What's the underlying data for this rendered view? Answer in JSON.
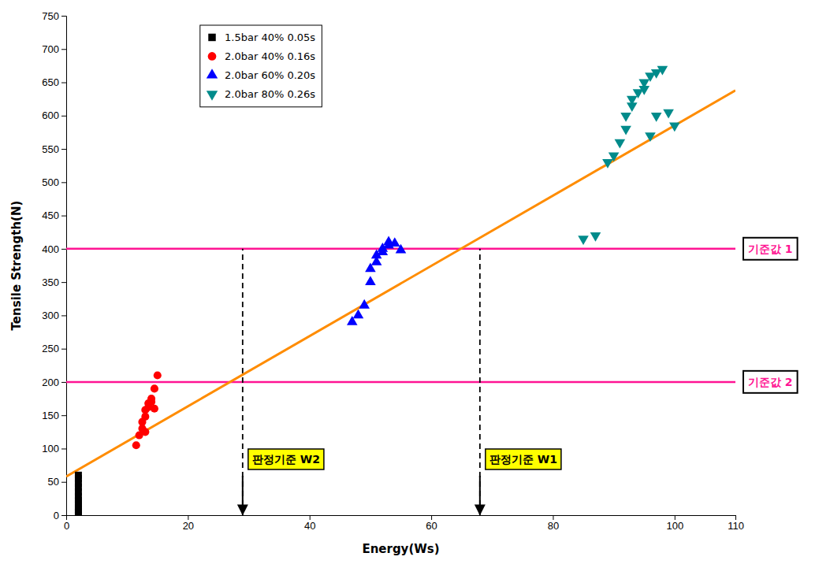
{
  "chart_data": {
    "type": "scatter",
    "x_label": "Energy(Ws)",
    "y_label": "Tensile Strength(N)",
    "xlim": [
      0,
      110
    ],
    "ylim": [
      0,
      750
    ],
    "xticks": [
      0,
      20,
      40,
      60,
      80,
      100,
      110
    ],
    "yticks": [
      0,
      50,
      100,
      150,
      200,
      250,
      300,
      350,
      400,
      450,
      500,
      550,
      600,
      650,
      700,
      750
    ],
    "grid": false,
    "legend": "upper left",
    "series": [
      {
        "name": "1.5bar 40% 0.05s",
        "type": "scatter",
        "color": "#000000",
        "marker": "square",
        "x": [
          2,
          2,
          2,
          2,
          2,
          2,
          2,
          2,
          2,
          2,
          2,
          2
        ],
        "values": [
          0,
          5,
          8,
          12,
          18,
          22,
          28,
          35,
          42,
          48,
          55,
          60
        ]
      },
      {
        "name": "2.0bar 40% 0.16s",
        "type": "scatter",
        "color": "#ff0000",
        "marker": "circle",
        "x": [
          11.5,
          12.0,
          12.5,
          12.5,
          13.0,
          13.0,
          13.5,
          13.5,
          14.0,
          14.0,
          14.5,
          15.0,
          14.5,
          13.0
        ],
        "values": [
          105,
          120,
          130,
          140,
          148,
          158,
          162,
          168,
          170,
          175,
          190,
          210,
          160,
          125
        ]
      },
      {
        "name": "2.0bar 60% 0.20s",
        "type": "scatter",
        "color": "#0000ff",
        "marker": "triangle-up",
        "x": [
          47,
          48,
          49,
          50,
          50,
          51,
          51,
          52,
          52,
          53,
          53,
          54,
          55
        ],
        "values": [
          290,
          300,
          315,
          350,
          370,
          380,
          390,
          395,
          400,
          405,
          410,
          408,
          398
        ]
      },
      {
        "name": "2.0bar 80% 0.26s",
        "type": "scatter",
        "color": "#008B8B",
        "marker": "triangle-down",
        "x": [
          85,
          87,
          89,
          90,
          91,
          92,
          92,
          93,
          93,
          94,
          95,
          95,
          96,
          97,
          98,
          99,
          100,
          96,
          97
        ],
        "values": [
          415,
          420,
          530,
          540,
          560,
          580,
          600,
          615,
          625,
          635,
          640,
          650,
          660,
          665,
          670,
          605,
          585,
          570,
          600
        ]
      },
      {
        "type": "line",
        "color": "#FF8C00",
        "line_style": "solid",
        "x": [
          0,
          110
        ],
        "values": [
          58,
          638
        ]
      }
    ],
    "annotations": [
      {
        "type": "hline",
        "y": 400,
        "color": "#FF1493",
        "text": "기준값 1"
      },
      {
        "type": "hline",
        "y": 200,
        "color": "#FF1493",
        "text": "기준값 2"
      },
      {
        "type": "vline",
        "x": 29,
        "y_range": [
          0,
          400
        ],
        "line_style": "dashed",
        "text": "판정기준 W2"
      },
      {
        "type": "vline",
        "x": 68,
        "y_range": [
          0,
          400
        ],
        "line_style": "dashed",
        "text": "판정기준 W1"
      }
    ]
  }
}
